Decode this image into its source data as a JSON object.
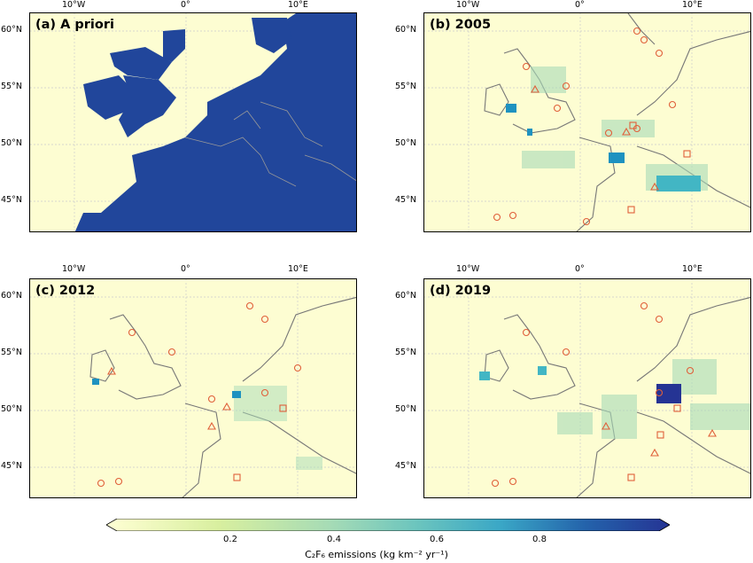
{
  "panels": [
    {
      "id": "a",
      "label": "(a) A priori"
    },
    {
      "id": "b",
      "label": "(b) 2005"
    },
    {
      "id": "c",
      "label": "(c) 2012"
    },
    {
      "id": "d",
      "label": "(d) 2019"
    }
  ],
  "axes": {
    "lon_ticks": [
      "10°W",
      "0°",
      "10°E"
    ],
    "lat_ticks": [
      "60°N",
      "55°N",
      "50°N",
      "45°N"
    ]
  },
  "colorbar": {
    "ticks": [
      "0.2",
      "0.4",
      "0.6",
      "0.8"
    ],
    "label": "C₂F₆ emissions (kg km⁻² yr⁻¹)",
    "colors": [
      "#ffffd4",
      "#e7f5b4",
      "#b5e0b6",
      "#7ccbbc",
      "#42b6c4",
      "#1e92c0",
      "#225ea8",
      "#253494"
    ]
  },
  "colors": {
    "map_bg": "#fdfdd2",
    "apriori": "#21469b",
    "marker": "#e0603a",
    "coast": "#777777"
  }
}
